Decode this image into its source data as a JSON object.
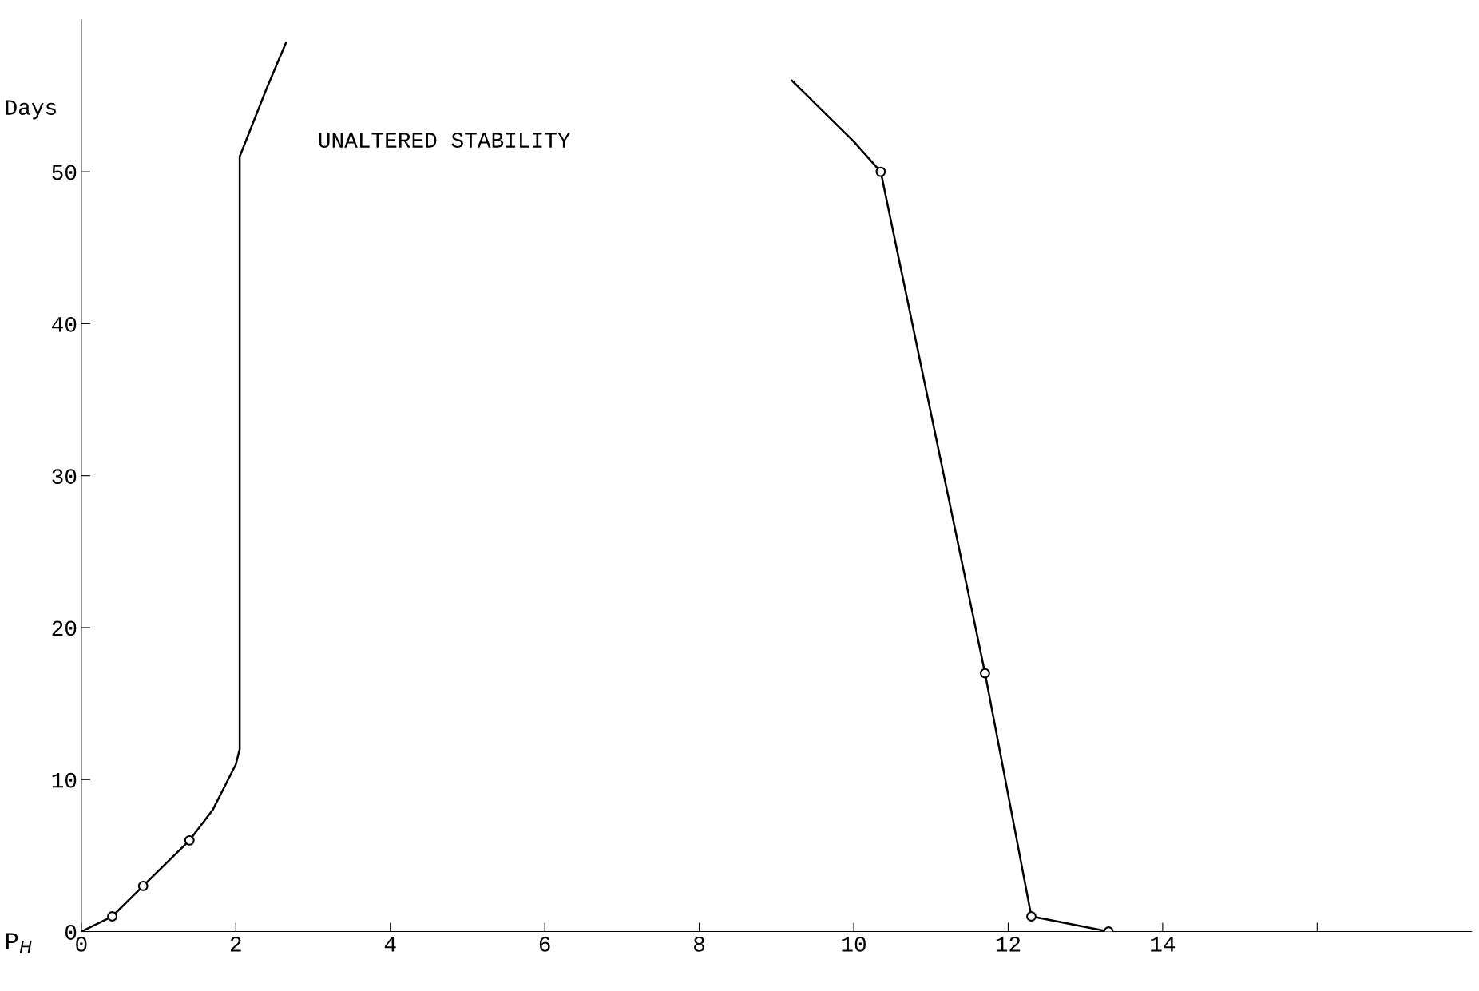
{
  "chart_data": {
    "type": "line",
    "xlabel": "P$_{H}$",
    "ylabel": "Days",
    "annotations": [
      "UNALTERED STABILITY"
    ],
    "xlim": [
      0,
      18
    ],
    "xticks": [
      0,
      2,
      4,
      6,
      8,
      10,
      12,
      14,
      {
        "value": 16,
        "label": null
      }
    ],
    "ylim": [
      0,
      60
    ],
    "yticks": [
      0,
      10,
      20,
      30,
      40,
      50
    ],
    "grid": false,
    "legend": false,
    "series": [
      {
        "color": "#000000",
        "marker": "none",
        "x": [
          0,
          0.4,
          0.8,
          1.4,
          1.7,
          2.0,
          2.05,
          2.05,
          2.4,
          2.65
        ],
        "values": [
          0,
          1,
          3,
          6,
          8,
          11,
          12,
          51,
          55.5,
          58.5
        ]
      },
      {
        "color": "#000000",
        "marker": "none",
        "x": [
          9.2,
          10.0,
          10.35,
          11.7,
          12.3,
          13.3
        ],
        "values": [
          56,
          52,
          50,
          17,
          1,
          0
        ]
      },
      {
        "type": "scatter",
        "color": "#000000",
        "marker": "circle",
        "x": [
          0.4,
          0.8,
          1.4,
          10.35,
          11.7,
          12.3,
          13.3
        ],
        "values": [
          1,
          3,
          6,
          50,
          17,
          1,
          0
        ]
      }
    ]
  }
}
